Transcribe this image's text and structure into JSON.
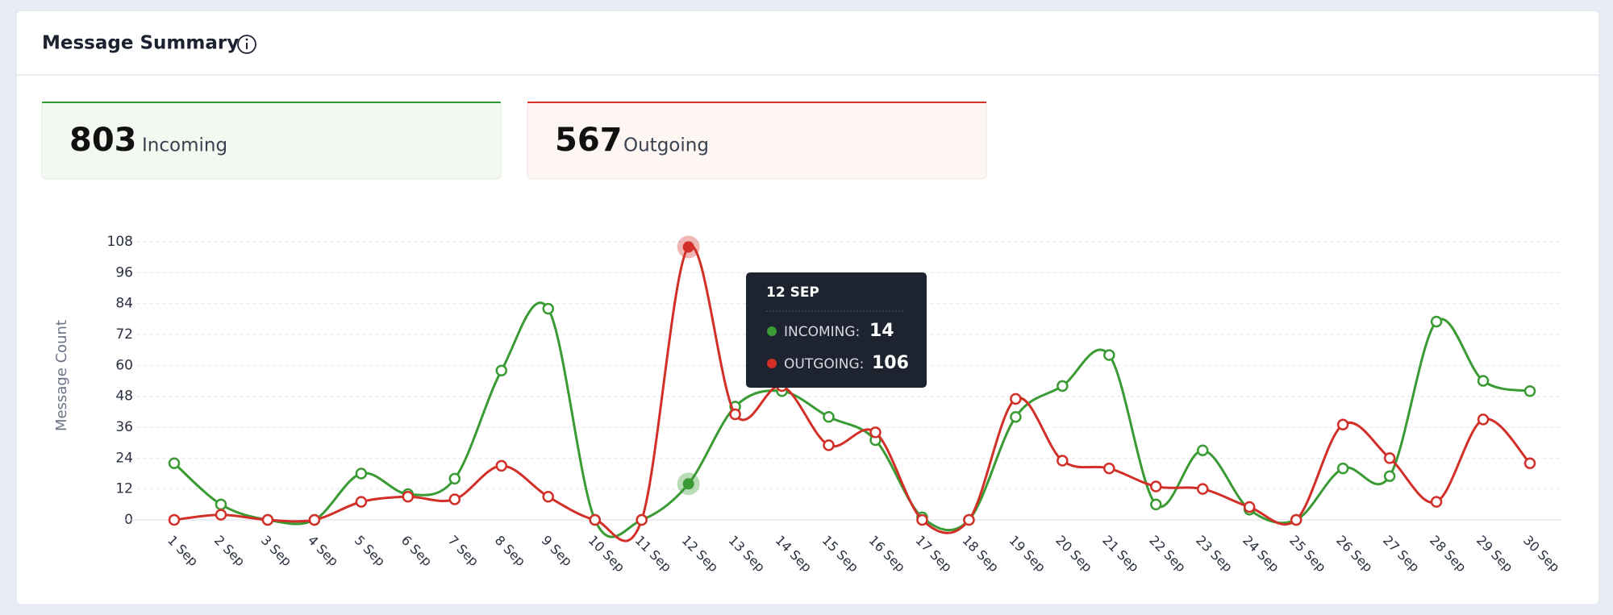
{
  "header": {
    "title": "Message Summary"
  },
  "cards": [
    {
      "total": 803,
      "label": "Incoming"
    },
    {
      "total": 567,
      "label": "Outgoing"
    }
  ],
  "chart_data": {
    "type": "line",
    "ylabel": "Message Count",
    "categories": [
      "1 Sep",
      "2 Sep",
      "3 Sep",
      "4 Sep",
      "5 Sep",
      "6 Sep",
      "7 Sep",
      "8 Sep",
      "9 Sep",
      "10 Sep",
      "11 Sep",
      "12 Sep",
      "13 Sep",
      "14 Sep",
      "15 Sep",
      "16 Sep",
      "17 Sep",
      "18 Sep",
      "19 Sep",
      "20 Sep",
      "21 Sep",
      "22 Sep",
      "23 Sep",
      "24 Sep",
      "25 Sep",
      "26 Sep",
      "27 Sep",
      "28 Sep",
      "29 Sep",
      "30 Sep"
    ],
    "series": [
      {
        "color": "#3a9a34",
        "values": [
          22,
          6,
          0,
          0,
          18,
          10,
          16,
          58,
          82,
          0,
          0,
          14,
          44,
          50,
          40,
          31,
          1,
          0,
          40,
          52,
          64,
          6,
          27,
          4,
          0,
          20,
          17,
          77,
          54,
          50
        ]
      },
      {
        "color": "#d12f27",
        "values": [
          0,
          2,
          0,
          0,
          7,
          9,
          8,
          21,
          9,
          0,
          0,
          106,
          41,
          52,
          29,
          34,
          0,
          0,
          47,
          23,
          20,
          13,
          12,
          5,
          0,
          37,
          24,
          7,
          39,
          22
        ]
      }
    ],
    "ylim": [
      0,
      108
    ],
    "yticks": [
      0,
      12,
      24,
      36,
      48,
      60,
      72,
      84,
      96,
      108
    ],
    "grid": true,
    "tooltip": {
      "title": "12 SEP",
      "labels": [
        "INCOMING:",
        "OUTGOING:"
      ]
    }
  }
}
